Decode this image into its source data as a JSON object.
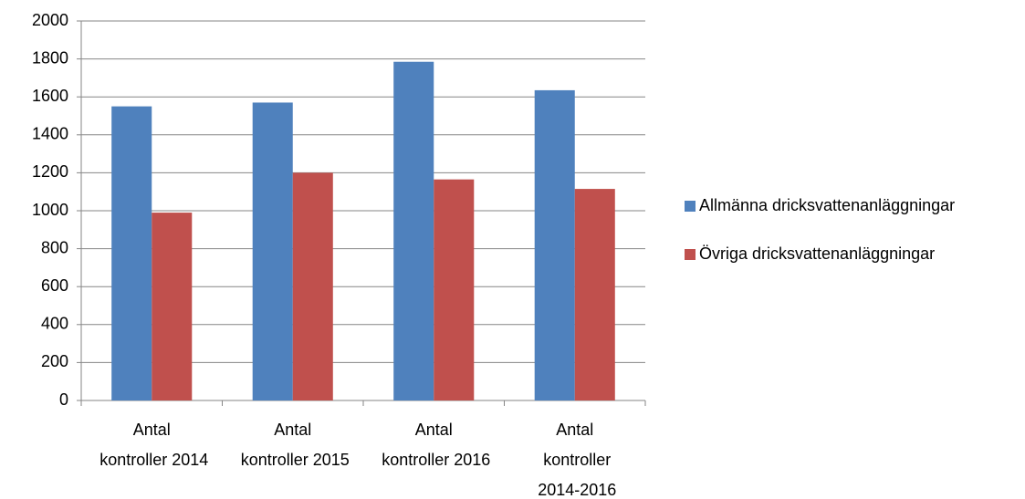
{
  "chart_data": {
    "type": "bar",
    "categories": [
      "Antal kontroller 2014",
      "Antal kontroller 2015",
      "Antal kontroller 2016",
      "Antal kontroller 2014-2016"
    ],
    "series": [
      {
        "name": "Allmänna dricksvattenanläggningar",
        "color": "#4f81bd",
        "values": [
          1550,
          1570,
          1785,
          1635
        ]
      },
      {
        "name": "Övriga dricksvattenanläggningar",
        "color": "#c0504d",
        "values": [
          990,
          1200,
          1165,
          1115
        ]
      }
    ],
    "ylim": [
      0,
      2000
    ],
    "yticks": [
      0,
      200,
      400,
      600,
      800,
      1000,
      1200,
      1400,
      1600,
      1800,
      2000
    ],
    "grid": true,
    "legend": "right"
  }
}
